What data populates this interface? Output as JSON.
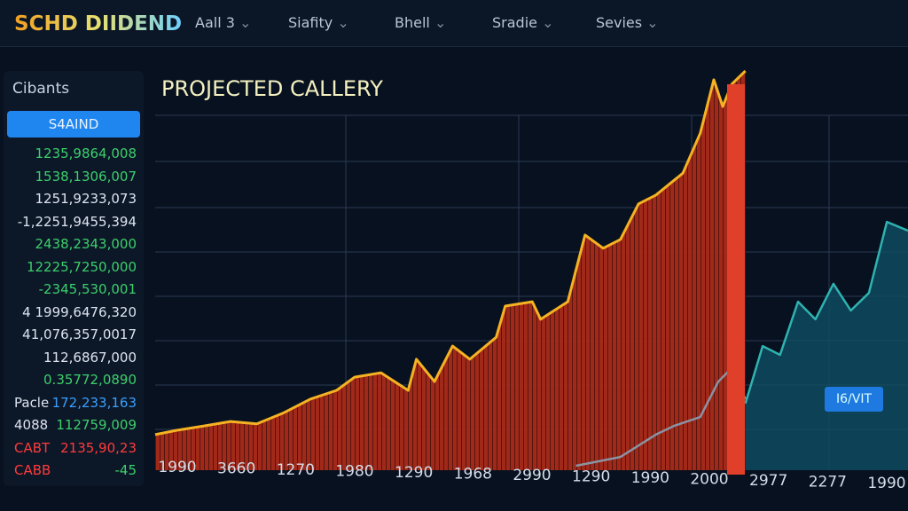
{
  "header": {
    "title": "SCHD DIIDEND",
    "nav": [
      "Aall 3",
      "Siafity",
      "Bhell",
      "Sradie",
      "Sevies"
    ]
  },
  "sidebar": {
    "dropdown": "Cibants",
    "button": "S4AIND",
    "rows": [
      [
        "",
        "1235,9864,008"
      ],
      [
        "",
        "1538,1306,007"
      ],
      [
        "",
        "1251,9233,073"
      ],
      [
        "",
        "-1,2251,9455,394"
      ],
      [
        "",
        "2438,2343,000"
      ],
      [
        "",
        "12225,7250,000"
      ],
      [
        "",
        "-2345,530,001"
      ],
      [
        "",
        "4 1999,6476,320"
      ],
      [
        "",
        "41,076,357,0017"
      ],
      [
        "",
        "112,6867,000"
      ],
      [
        "",
        "0.35772,0890"
      ],
      [
        "Pacle",
        "172,233,163"
      ],
      [
        "4088",
        "112759,009"
      ],
      [
        "CABT",
        "2135,90,23"
      ],
      [
        "CABB",
        "-45"
      ]
    ]
  },
  "chart_data": {
    "type": "line",
    "title": "PROJECTED CALLERY",
    "button": "I6/VIT",
    "categories": [
      "1990",
      "3660",
      "1270",
      "1980",
      "1290",
      "1968",
      "2990",
      "1290",
      "1990",
      "2000",
      "2977",
      "2277",
      "1990"
    ],
    "xlim": [
      0,
      100
    ],
    "ylim": [
      0,
      100
    ],
    "series": [
      {
        "color": "#f5b323",
        "fill": "#b8321f",
        "x": [
          0,
          2.9,
          6.5,
          10,
          13.5,
          17.1,
          20.6,
          24.1,
          26.5,
          30,
          33.6,
          34.7,
          37.1,
          39.5,
          41.8,
          45.3,
          46.5,
          50.1,
          51.2,
          54.8,
          57.1,
          59.5,
          61.8,
          64.2,
          66.5,
          70.1,
          72.4,
          74.2,
          75.4,
          76.6,
          78.4
        ],
        "values": [
          8.9,
          10,
          11.1,
          12.2,
          11.6,
          14.4,
          17.8,
          20,
          23.3,
          24.4,
          20,
          27.8,
          22.2,
          31.1,
          27.8,
          33.3,
          41.1,
          42.2,
          37.8,
          42.2,
          58.9,
          55.6,
          57.8,
          66.7,
          68.9,
          74.4,
          84.4,
          97.8,
          91.1,
          96.7,
          100
        ]
      },
      {
        "color": "#8a93a3",
        "x": [
          55.9,
          61.8,
          66.5,
          68.9,
          72.4,
          74.8,
          76.6,
          78.4
        ],
        "values": [
          1.1,
          3.3,
          8.9,
          11.1,
          13.3,
          22.2,
          25.6,
          17.8
        ]
      },
      {
        "color": "#2fb3b0",
        "fill": "#0f4d63",
        "x": [
          78.4,
          80.7,
          83,
          85.4,
          87.7,
          90.1,
          92.4,
          94.8,
          97.2,
          100
        ],
        "values": [
          16.7,
          31.1,
          28.9,
          42.2,
          37.8,
          46.7,
          40,
          44.4,
          62.2,
          60
        ]
      }
    ]
  }
}
